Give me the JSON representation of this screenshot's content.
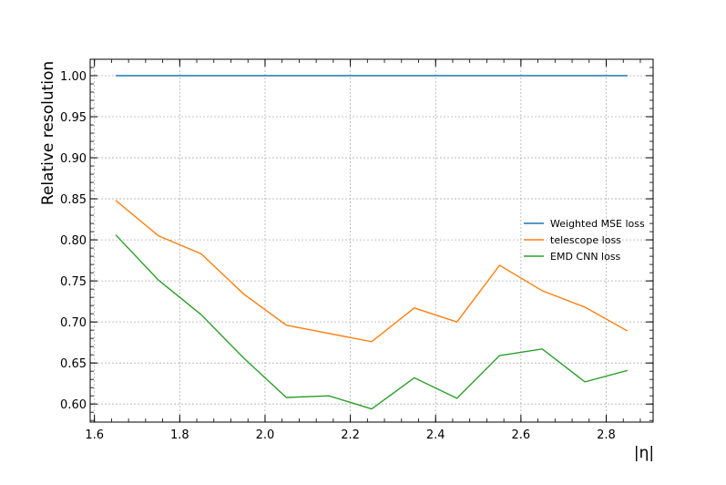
{
  "chart_data": {
    "type": "line",
    "xlabel": "|η|",
    "ylabel": "Relative resolution",
    "xlim": [
      1.59,
      2.91
    ],
    "ylim": [
      0.578,
      1.02
    ],
    "grid": true,
    "legend_position": "center-right",
    "xticks": [
      "1.6",
      "1.8",
      "2.0",
      "2.2",
      "2.4",
      "2.6",
      "2.8"
    ],
    "yticks": [
      "0.60",
      "0.65",
      "0.70",
      "0.75",
      "0.80",
      "0.85",
      "0.90",
      "0.95",
      "1.00"
    ],
    "x": [
      1.65,
      1.75,
      1.85,
      1.95,
      2.05,
      2.15,
      2.25,
      2.35,
      2.45,
      2.55,
      2.65,
      2.75,
      2.85
    ],
    "series": [
      {
        "name": "Weighted MSE loss",
        "color": "#1f77b4",
        "values": [
          1.0,
          1.0,
          1.0,
          1.0,
          1.0,
          1.0,
          1.0,
          1.0,
          1.0,
          1.0,
          1.0,
          1.0,
          1.0
        ]
      },
      {
        "name": "telescope loss",
        "color": "#ff7f0e",
        "values": [
          0.848,
          0.805,
          0.783,
          0.734,
          0.696,
          0.686,
          0.676,
          0.717,
          0.7,
          0.769,
          0.738,
          0.718,
          0.689
        ]
      },
      {
        "name": "EMD CNN loss",
        "color": "#2ca02c",
        "values": [
          0.806,
          0.751,
          0.709,
          0.656,
          0.608,
          0.61,
          0.594,
          0.632,
          0.607,
          0.659,
          0.667,
          0.627,
          0.641
        ]
      }
    ]
  }
}
